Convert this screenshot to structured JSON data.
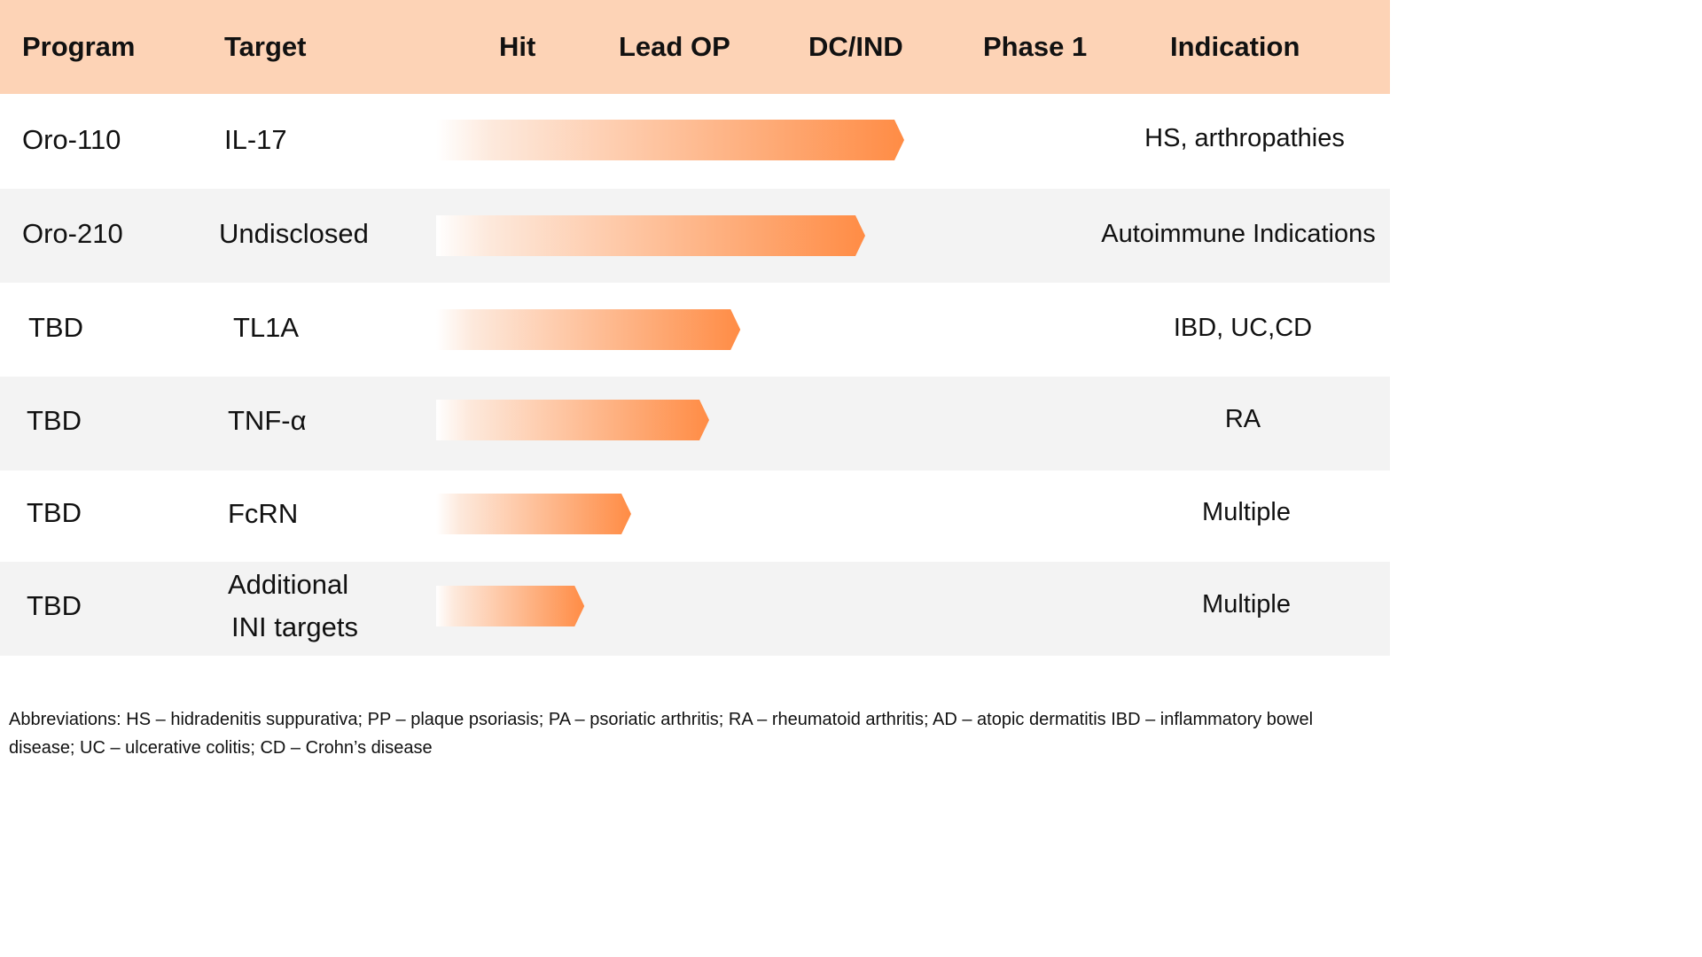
{
  "chart_data": {
    "type": "bar",
    "orientation": "horizontal",
    "title": "",
    "stages": [
      "Hit",
      "Lead OP",
      "DC/IND",
      "Phase 1"
    ],
    "columns": {
      "program": "Program",
      "target": "Target",
      "indication": "Indication"
    },
    "rows": [
      {
        "program": "Oro-110",
        "target": [
          "IL-17"
        ],
        "indication": "HS, arthropathies",
        "progress": 3.0
      },
      {
        "program": "Oro-210",
        "target": [
          "Undisclosed"
        ],
        "indication": "Autoimmune Indications",
        "progress": 2.75
      },
      {
        "program": "TBD",
        "target": [
          "TL1A"
        ],
        "indication": "IBD, UC,CD",
        "progress": 1.95
      },
      {
        "program": "TBD",
        "target": [
          "TNF-α"
        ],
        "indication": "RA",
        "progress": 1.75
      },
      {
        "program": "TBD",
        "target": [
          "FcRN"
        ],
        "indication": "Multiple",
        "progress": 1.25
      },
      {
        "program": "TBD",
        "target": [
          "Additional",
          "INI targets"
        ],
        "indication": "Multiple",
        "progress": 0.95
      }
    ],
    "colors": {
      "header_bg": "#fdd3b6",
      "bar_end": "#ff8c45",
      "bar_start": "#ffffff",
      "row_alt_bg": "#f3f3f3"
    }
  },
  "footnote": {
    "line1": "Abbreviations: HS – hidradenitis suppurativa; PP – plaque psoriasis; PA – psoriatic arthritis; RA – rheumatoid arthritis; AD – atopic dermatitis IBD – inflammatory bowel",
    "line2": "disease; UC – ulcerative colitis; CD – Crohn’s disease"
  }
}
